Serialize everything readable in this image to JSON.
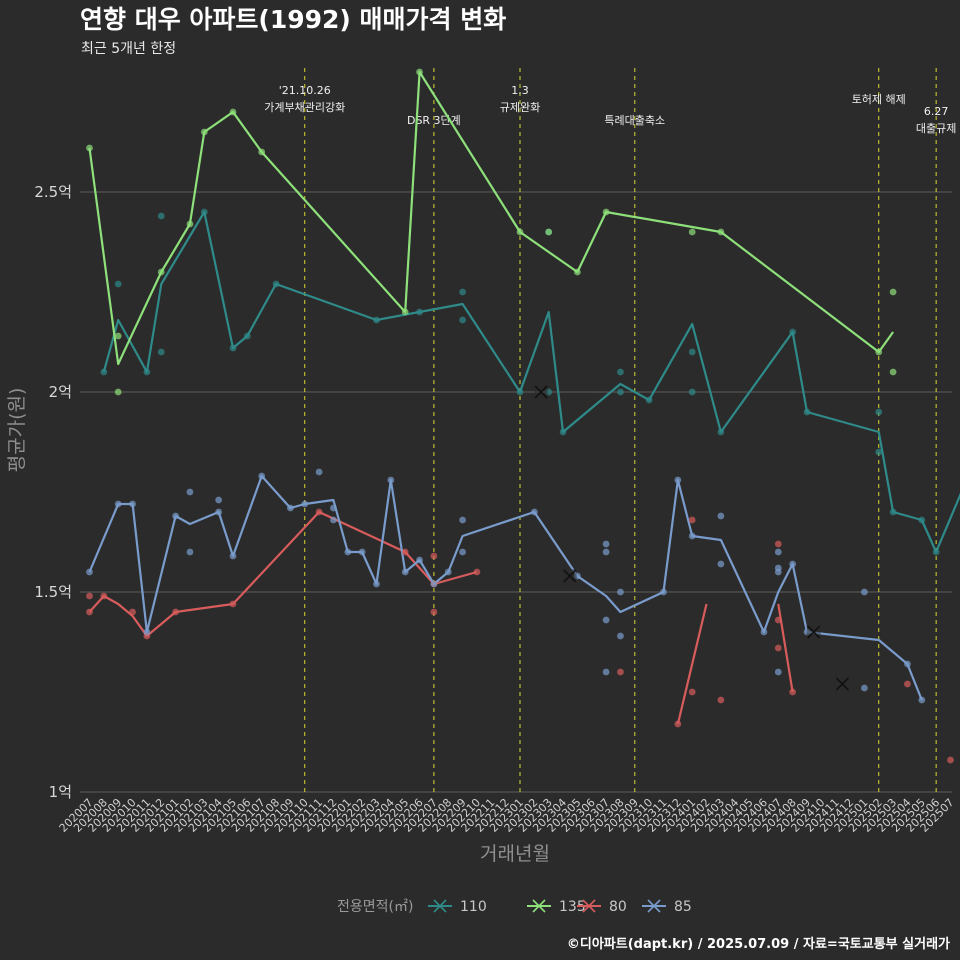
{
  "chart_data": {
    "type": "line",
    "title": "연향 대우 아파트(1992) 매매가격 변화",
    "subtitle": "최근 5개년 한정",
    "xlabel": "거래년월",
    "ylabel": "평균가(원)",
    "caption": "©디아파트(dapt.kr) / 2025.07.09 / 자료=국토교통부 실거래가",
    "ylim": [
      1.0,
      2.85
    ],
    "yticks": [
      1.0,
      1.5,
      2.0,
      2.5
    ],
    "ytick_labels": [
      "1억",
      "1.5억",
      "2억",
      "2.5억"
    ],
    "grid": "horizontal",
    "legend_position": "bottom",
    "legend_title": "전용면적(㎡)",
    "categories": [
      "202007",
      "202008",
      "202009",
      "202010",
      "202011",
      "202012",
      "202101",
      "202102",
      "202103",
      "202104",
      "202105",
      "202106",
      "202107",
      "202108",
      "202109",
      "202110",
      "202111",
      "202112",
      "202201",
      "202202",
      "202203",
      "202204",
      "202205",
      "202206",
      "202207",
      "202208",
      "202209",
      "202210",
      "202211",
      "202212",
      "202301",
      "202302",
      "202303",
      "202304",
      "202305",
      "202306",
      "202307",
      "202308",
      "202309",
      "202310",
      "202311",
      "202312",
      "202401",
      "202402",
      "202403",
      "202404",
      "202405",
      "202406",
      "202407",
      "202408",
      "202409",
      "202410",
      "202411",
      "202412",
      "202501",
      "202502",
      "202503",
      "202504",
      "202505",
      "202506",
      "202507"
    ],
    "events": [
      {
        "x": "202110",
        "lines": [
          "'21.10.26",
          "가계부채관리강화"
        ],
        "row": 0
      },
      {
        "x": "202207",
        "lines": [
          "DSR 3단계"
        ],
        "row": 1
      },
      {
        "x": "202301",
        "lines": [
          "1.3",
          "규제완화"
        ],
        "row": 0
      },
      {
        "x": "202309",
        "lines": [
          "특례대출축소"
        ],
        "row": 1
      },
      {
        "x": "202502",
        "lines": [
          "토허제 해제"
        ],
        "row": 0
      },
      {
        "x": "202506",
        "lines": [
          "6.27",
          "대출규제"
        ],
        "row": 1
      }
    ],
    "series": [
      {
        "name": "110",
        "color": "#2f8a8a",
        "line": [
          [
            "202008",
            2.05
          ],
          [
            "202009",
            2.18
          ],
          [
            "202011",
            2.05
          ],
          [
            "202012",
            2.27
          ],
          [
            "202103",
            2.45
          ],
          [
            "202105",
            2.11
          ],
          [
            "202106",
            2.14
          ],
          [
            "202108",
            2.27
          ],
          [
            "202203",
            2.18
          ],
          [
            "202209",
            2.22
          ],
          [
            "202301",
            2.0
          ],
          [
            "202303",
            2.2
          ],
          [
            "202304",
            1.9
          ],
          [
            "202308",
            2.02
          ],
          [
            "202310",
            1.98
          ],
          [
            "202401",
            2.17
          ],
          [
            "202403",
            1.9
          ],
          [
            "202408",
            2.15
          ],
          [
            "202409",
            1.95
          ],
          [
            "202502",
            1.9
          ],
          [
            "202503",
            1.7
          ],
          [
            "202505",
            1.68
          ],
          [
            "202506",
            1.6
          ],
          [
            "202508",
            1.77
          ]
        ],
        "points": [
          [
            "202008",
            2.05
          ],
          [
            "202009",
            2.27
          ],
          [
            "202011",
            2.05
          ],
          [
            "202012",
            2.44
          ],
          [
            "202012",
            2.1
          ],
          [
            "202103",
            2.45
          ],
          [
            "202105",
            2.11
          ],
          [
            "202106",
            2.14
          ],
          [
            "202108",
            2.27
          ],
          [
            "202203",
            2.18
          ],
          [
            "202206",
            2.2
          ],
          [
            "202209",
            2.25
          ],
          [
            "202209",
            2.18
          ],
          [
            "202301",
            2.0
          ],
          [
            "202303",
            2.4
          ],
          [
            "202303",
            2.0
          ],
          [
            "202304",
            1.9
          ],
          [
            "202308",
            2.05
          ],
          [
            "202308",
            2.0
          ],
          [
            "202310",
            1.98
          ],
          [
            "202401",
            2.1
          ],
          [
            "202401",
            2.0
          ],
          [
            "202403",
            1.9
          ],
          [
            "202408",
            2.15
          ],
          [
            "202409",
            1.95
          ],
          [
            "202502",
            1.95
          ],
          [
            "202502",
            1.85
          ],
          [
            "202503",
            1.7
          ],
          [
            "202505",
            1.68
          ],
          [
            "202506",
            1.6
          ],
          [
            "202508",
            1.77
          ]
        ],
        "crosses": [
          [
            "20230215",
            2.0
          ]
        ]
      },
      {
        "name": "135",
        "color": "#8ee07a",
        "line": [
          [
            "202007",
            2.61
          ],
          [
            "202009",
            2.07
          ],
          [
            "202012",
            2.3
          ],
          [
            "202102",
            2.42
          ],
          [
            "202103",
            2.65
          ],
          [
            "202105",
            2.7
          ],
          [
            "202107",
            2.6
          ],
          [
            "202205",
            2.2
          ],
          [
            "202206",
            2.8
          ],
          [
            "202301",
            2.4
          ],
          [
            "202305",
            2.3
          ],
          [
            "202307",
            2.45
          ],
          [
            "202403",
            2.4
          ],
          [
            "202502",
            2.1
          ],
          [
            "202503",
            2.15
          ]
        ],
        "points": [
          [
            "202007",
            2.61
          ],
          [
            "202009",
            2.14
          ],
          [
            "202009",
            2.0
          ],
          [
            "202012",
            2.3
          ],
          [
            "202102",
            2.42
          ],
          [
            "202103",
            2.65
          ],
          [
            "202105",
            2.7
          ],
          [
            "202107",
            2.6
          ],
          [
            "202205",
            2.2
          ],
          [
            "202206",
            2.8
          ],
          [
            "202301",
            2.4
          ],
          [
            "202303",
            2.4
          ],
          [
            "202305",
            2.3
          ],
          [
            "202307",
            2.45
          ],
          [
            "202401",
            2.4
          ],
          [
            "202403",
            2.4
          ],
          [
            "202502",
            2.1
          ],
          [
            "202503",
            2.25
          ],
          [
            "202503",
            2.05
          ]
        ],
        "crosses": []
      },
      {
        "name": "80",
        "color": "#d85c5c",
        "segments": [
          [
            [
              "202007",
              1.45
            ],
            [
              "202008",
              1.49
            ],
            [
              "202009",
              1.47
            ],
            [
              "202010",
              1.44
            ],
            [
              "202011",
              1.39
            ],
            [
              "202101",
              1.45
            ],
            [
              "202105",
              1.47
            ],
            [
              "202111",
              1.7
            ],
            [
              "202205",
              1.6
            ],
            [
              "202207",
              1.52
            ],
            [
              "202210",
              1.55
            ]
          ],
          [
            [
              "202312",
              1.17
            ],
            [
              "202402",
              1.47
            ]
          ],
          [
            [
              "202407",
              1.47
            ],
            [
              "202408",
              1.25
            ]
          ]
        ],
        "points": [
          [
            "202007",
            1.45
          ],
          [
            "202007",
            1.49
          ],
          [
            "202008",
            1.49
          ],
          [
            "202010",
            1.45
          ],
          [
            "202011",
            1.39
          ],
          [
            "202101",
            1.45
          ],
          [
            "202105",
            1.47
          ],
          [
            "202111",
            1.7
          ],
          [
            "202205",
            1.6
          ],
          [
            "202207",
            1.59
          ],
          [
            "202207",
            1.45
          ],
          [
            "202207",
            1.52
          ],
          [
            "202210",
            1.55
          ],
          [
            "202308",
            1.3
          ],
          [
            "202312",
            1.17
          ],
          [
            "202401",
            1.68
          ],
          [
            "202401",
            1.25
          ],
          [
            "202403",
            1.23
          ],
          [
            "202407",
            1.62
          ],
          [
            "202407",
            1.43
          ],
          [
            "202407",
            1.36
          ],
          [
            "202408",
            1.25
          ],
          [
            "202504",
            1.27
          ],
          [
            "202507",
            1.08
          ]
        ],
        "crosses": [
          [
            "20241115",
            1.27
          ]
        ]
      },
      {
        "name": "85",
        "color": "#7a9ccc",
        "line": [
          [
            "202007",
            1.55
          ],
          [
            "202009",
            1.72
          ],
          [
            "202010",
            1.72
          ],
          [
            "202011",
            1.4
          ],
          [
            "202101",
            1.69
          ],
          [
            "202102",
            1.67
          ],
          [
            "202104",
            1.7
          ],
          [
            "202105",
            1.59
          ],
          [
            "202107",
            1.79
          ],
          [
            "202109",
            1.71
          ],
          [
            "202110",
            1.72
          ],
          [
            "202112",
            1.73
          ],
          [
            "202201",
            1.6
          ],
          [
            "202202",
            1.6
          ],
          [
            "202203",
            1.52
          ],
          [
            "202204",
            1.78
          ],
          [
            "202205",
            1.55
          ],
          [
            "202206",
            1.58
          ],
          [
            "202207",
            1.52
          ],
          [
            "202208",
            1.55
          ],
          [
            "202209",
            1.64
          ],
          [
            "202302",
            1.7
          ],
          [
            "202305",
            1.54
          ],
          [
            "202307",
            1.49
          ],
          [
            "202308",
            1.45
          ],
          [
            "202311",
            1.5
          ],
          [
            "202312",
            1.78
          ],
          [
            "202401",
            1.64
          ],
          [
            "202403",
            1.63
          ],
          [
            "202406",
            1.4
          ],
          [
            "202407",
            1.5
          ],
          [
            "202408",
            1.57
          ],
          [
            "202409",
            1.4
          ],
          [
            "202502",
            1.38
          ],
          [
            "202504",
            1.32
          ],
          [
            "202505",
            1.23
          ]
        ],
        "points": [
          [
            "202007",
            1.55
          ],
          [
            "202009",
            1.72
          ],
          [
            "202010",
            1.72
          ],
          [
            "202011",
            1.4
          ],
          [
            "202101",
            1.69
          ],
          [
            "202102",
            1.75
          ],
          [
            "202102",
            1.6
          ],
          [
            "202104",
            1.73
          ],
          [
            "202104",
            1.7
          ],
          [
            "202105",
            1.59
          ],
          [
            "202107",
            1.79
          ],
          [
            "202109",
            1.71
          ],
          [
            "202110",
            1.72
          ],
          [
            "202111",
            1.8
          ],
          [
            "202112",
            1.71
          ],
          [
            "202112",
            1.68
          ],
          [
            "202201",
            1.6
          ],
          [
            "202202",
            1.6
          ],
          [
            "202203",
            1.52
          ],
          [
            "202204",
            1.78
          ],
          [
            "202205",
            1.55
          ],
          [
            "202206",
            1.58
          ],
          [
            "202207",
            1.52
          ],
          [
            "202208",
            1.55
          ],
          [
            "202209",
            1.68
          ],
          [
            "202209",
            1.6
          ],
          [
            "202302",
            1.7
          ],
          [
            "202305",
            1.54
          ],
          [
            "202307",
            1.62
          ],
          [
            "202307",
            1.6
          ],
          [
            "202307",
            1.43
          ],
          [
            "202307",
            1.3
          ],
          [
            "202308",
            1.5
          ],
          [
            "202308",
            1.39
          ],
          [
            "202311",
            1.5
          ],
          [
            "202312",
            1.78
          ],
          [
            "202401",
            1.64
          ],
          [
            "202403",
            1.69
          ],
          [
            "202403",
            1.57
          ],
          [
            "202406",
            1.4
          ],
          [
            "202407",
            1.6
          ],
          [
            "202407",
            1.56
          ],
          [
            "202407",
            1.55
          ],
          [
            "202407",
            1.3
          ],
          [
            "202408",
            1.57
          ],
          [
            "202409",
            1.4
          ],
          [
            "202501",
            1.5
          ],
          [
            "202501",
            1.26
          ],
          [
            "202504",
            1.32
          ],
          [
            "202505",
            1.23
          ]
        ],
        "crosses": [
          [
            "20230415",
            1.54
          ],
          [
            "20240915",
            1.4
          ]
        ]
      }
    ]
  }
}
